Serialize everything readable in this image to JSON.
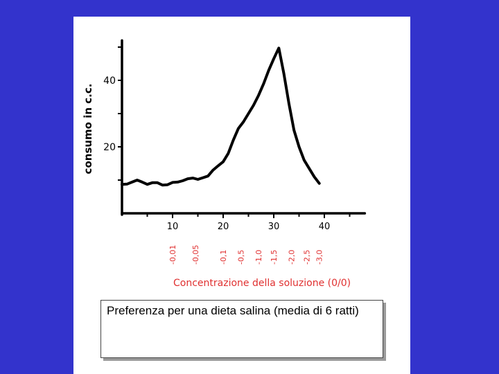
{
  "colors": {
    "background": "#3333cc",
    "slide": "#ffffff",
    "ink": "#000000",
    "annotation": "#e03030"
  },
  "caption": "Preferenza per una dieta salina (media di 6 ratti)",
  "chart_data": {
    "type": "line",
    "title": "",
    "ylabel": "consumo in c.c.",
    "xlabel": "",
    "xlim": [
      0,
      48
    ],
    "ylim": [
      0,
      52
    ],
    "grid": false,
    "x_ticks": [
      10,
      20,
      30,
      40
    ],
    "y_ticks": [
      20,
      40
    ],
    "series": [
      {
        "x": [
          0,
          1,
          2,
          3,
          4,
          5,
          6,
          7,
          8,
          9,
          10,
          11,
          12,
          13,
          14,
          15,
          16,
          17,
          18,
          19,
          20,
          21,
          22,
          23,
          24,
          25,
          26,
          27,
          28,
          29,
          30,
          31,
          32,
          33,
          34,
          35,
          36,
          37,
          38,
          39
        ],
        "y": [
          8.7,
          8.8,
          9.4,
          10.0,
          9.4,
          8.7,
          9.2,
          9.2,
          8.5,
          8.6,
          9.3,
          9.4,
          9.8,
          10.4,
          10.6,
          10.2,
          10.7,
          11.2,
          13.0,
          14.3,
          15.5,
          18.0,
          22.0,
          25.5,
          27.5,
          30.0,
          32.5,
          35.5,
          39.0,
          43.0,
          46.5,
          49.7,
          42.0,
          33.0,
          25.0,
          20.0,
          16.0,
          13.5,
          11.0,
          9.0
        ]
      }
    ],
    "annotations": {
      "concentration_ticks": [
        {
          "label": "-0,01",
          "x": 10
        },
        {
          "label": "-0,05",
          "x": 14.5
        },
        {
          "label": "-0,1",
          "x": 20
        },
        {
          "label": "-0,5",
          "x": 23.5
        },
        {
          "label": "-1,0",
          "x": 27
        },
        {
          "label": "-1,5",
          "x": 30
        },
        {
          "label": "-2,0",
          "x": 33.5
        },
        {
          "label": "-2,5",
          "x": 36.5
        },
        {
          "label": "-3,0",
          "x": 39
        }
      ],
      "concentration_label": "Concentrazione della soluzione (0/0)"
    }
  }
}
